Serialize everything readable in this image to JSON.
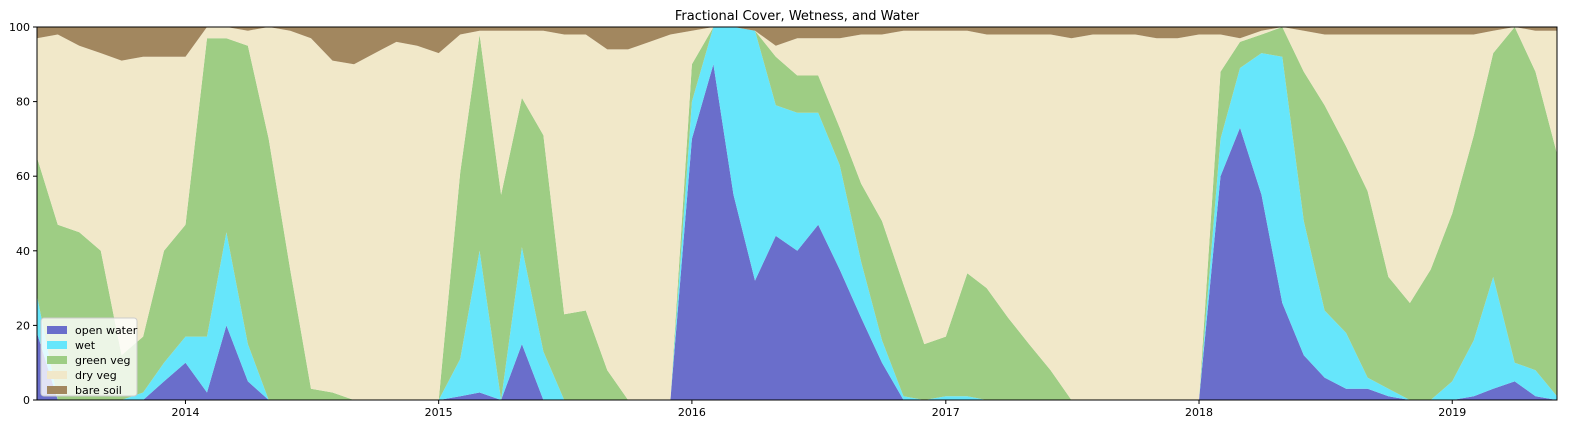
{
  "chart_data": {
    "type": "area",
    "stacked": true,
    "title": "Fractional Cover, Wetness, and Water",
    "xlabel": "",
    "ylabel": "",
    "xlim": [
      "2013-06-01",
      "2019-06-01"
    ],
    "ylim": [
      0,
      100
    ],
    "x_ticks": [
      "2014",
      "2015",
      "2016",
      "2017",
      "2018",
      "2019"
    ],
    "y_ticks": [
      0,
      20,
      40,
      60,
      80,
      100
    ],
    "grid": false,
    "legend_position": "lower-left",
    "x": [
      "2013-06-01",
      "2013-07-01",
      "2013-08-01",
      "2013-09-01",
      "2013-10-01",
      "2013-11-01",
      "2013-12-01",
      "2014-01-01",
      "2014-02-01",
      "2014-03-01",
      "2014-04-01",
      "2014-05-01",
      "2014-06-01",
      "2014-07-01",
      "2014-08-01",
      "2014-09-01",
      "2014-10-01",
      "2014-11-01",
      "2014-12-01",
      "2015-01-01",
      "2015-02-01",
      "2015-03-01",
      "2015-04-01",
      "2015-05-01",
      "2015-06-01",
      "2015-07-01",
      "2015-08-01",
      "2015-09-01",
      "2015-10-01",
      "2015-11-01",
      "2015-12-01",
      "2016-01-01",
      "2016-02-01",
      "2016-03-01",
      "2016-04-01",
      "2016-05-01",
      "2016-06-01",
      "2016-07-01",
      "2016-08-01",
      "2016-09-01",
      "2016-10-01",
      "2016-11-01",
      "2016-12-01",
      "2017-01-01",
      "2017-02-01",
      "2017-03-01",
      "2017-04-01",
      "2017-05-01",
      "2017-06-01",
      "2017-07-01",
      "2017-08-01",
      "2017-09-01",
      "2017-10-01",
      "2017-11-01",
      "2017-12-01",
      "2018-01-01",
      "2018-02-01",
      "2018-03-01",
      "2018-04-01",
      "2018-05-01",
      "2018-06-01",
      "2018-07-01",
      "2018-08-01",
      "2018-09-01",
      "2018-10-01",
      "2018-11-01",
      "2018-12-01",
      "2019-01-01",
      "2019-02-01",
      "2019-03-01",
      "2019-04-01",
      "2019-05-01",
      "2019-06-01"
    ],
    "series": [
      {
        "name": "open water",
        "color": "#6a6ecb",
        "values": [
          18,
          0,
          0,
          0,
          0,
          0,
          5,
          10,
          2,
          20,
          5,
          0,
          0,
          0,
          0,
          0,
          0,
          0,
          0,
          0,
          1,
          2,
          0,
          15,
          0,
          0,
          0,
          0,
          0,
          0,
          0,
          70,
          90,
          55,
          32,
          44,
          40,
          47,
          35,
          22,
          10,
          0,
          0,
          0,
          0,
          0,
          0,
          0,
          0,
          0,
          0,
          0,
          0,
          0,
          0,
          0,
          60,
          73,
          55,
          26,
          12,
          6,
          3,
          3,
          1,
          0,
          0,
          0,
          1,
          3,
          5,
          1,
          0
        ]
      },
      {
        "name": "wet",
        "color": "#66e6fb",
        "values": [
          10,
          0,
          0,
          0,
          0,
          2,
          5,
          7,
          15,
          25,
          10,
          0,
          0,
          0,
          0,
          0,
          0,
          0,
          0,
          0,
          10,
          38,
          0,
          26,
          13,
          0,
          0,
          0,
          0,
          0,
          0,
          10,
          10,
          45,
          67,
          35,
          37,
          30,
          28,
          15,
          6,
          1,
          0,
          1,
          1,
          0,
          0,
          0,
          0,
          0,
          0,
          0,
          0,
          0,
          0,
          0,
          10,
          16,
          38,
          66,
          36,
          18,
          15,
          3,
          2,
          0,
          0,
          5,
          15,
          30,
          5,
          7,
          1
        ]
      },
      {
        "name": "green veg",
        "color": "#9ecd84",
        "values": [
          37,
          47,
          45,
          40,
          12,
          15,
          30,
          30,
          80,
          52,
          80,
          70,
          35,
          3,
          2,
          0,
          0,
          0,
          0,
          0,
          50,
          58,
          55,
          40,
          58,
          23,
          24,
          8,
          0,
          0,
          0,
          10,
          0,
          0,
          0,
          13,
          10,
          10,
          10,
          21,
          32,
          30,
          15,
          16,
          33,
          30,
          22,
          15,
          8,
          0,
          0,
          0,
          0,
          0,
          0,
          0,
          18,
          7,
          5,
          8,
          40,
          55,
          50,
          50,
          30,
          26,
          35,
          45,
          55,
          60,
          90,
          80,
          65
        ]
      },
      {
        "name": "dry veg",
        "color": "#f1e8c9",
        "values": [
          32,
          51,
          50,
          53,
          79,
          75,
          52,
          45,
          3,
          3,
          4,
          30,
          64,
          94,
          89,
          90,
          93,
          96,
          95,
          93,
          37,
          1,
          44,
          18,
          28,
          75,
          74,
          86,
          94,
          96,
          98,
          9,
          0,
          0,
          0,
          3,
          10,
          10,
          24,
          40,
          50,
          68,
          84,
          82,
          65,
          68,
          76,
          83,
          90,
          97,
          98,
          98,
          98,
          97,
          97,
          98,
          10,
          1,
          1,
          0,
          11,
          19,
          30,
          42,
          65,
          72,
          63,
          48,
          27,
          6,
          0,
          11,
          33
        ]
      },
      {
        "name": "bare soil",
        "color": "#a2875f",
        "values": [
          3,
          2,
          5,
          7,
          9,
          8,
          8,
          8,
          0,
          0,
          1,
          0,
          1,
          3,
          9,
          10,
          7,
          4,
          5,
          7,
          2,
          1,
          1,
          1,
          1,
          2,
          2,
          6,
          6,
          4,
          2,
          1,
          0,
          0,
          1,
          5,
          3,
          3,
          3,
          2,
          2,
          1,
          1,
          1,
          1,
          2,
          2,
          2,
          2,
          3,
          2,
          2,
          2,
          3,
          3,
          2,
          2,
          3,
          1,
          0,
          1,
          2,
          2,
          2,
          2,
          2,
          2,
          2,
          2,
          1,
          0,
          1,
          1
        ]
      }
    ]
  }
}
